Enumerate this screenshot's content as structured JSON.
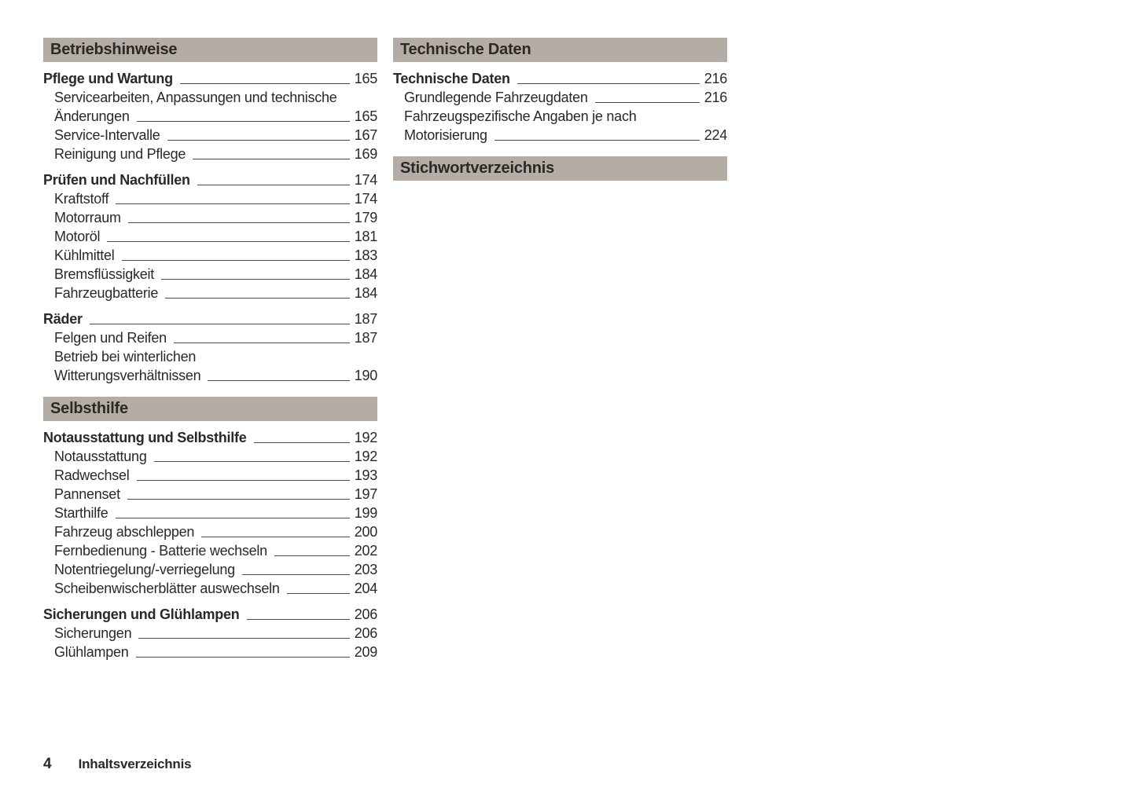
{
  "page": {
    "footer": {
      "page_number": "4",
      "label": "Inhaltsverzeichnis"
    }
  },
  "colors": {
    "page_background": "#ffffff",
    "section_bar_background": "#b3ada6",
    "text": "#2b2826",
    "leader_line": "#4b4b49"
  },
  "columns": [
    {
      "name": "left",
      "sections": [
        {
          "title": "Betriebshinweise",
          "groups": [
            {
              "title": "Pflege und Wartung",
              "page": "165",
              "items": [
                {
                  "lines": [
                    "Servicearbeiten, Anpassungen und technische",
                    "Änderungen"
                  ],
                  "page": "165"
                },
                {
                  "lines": [
                    "Service-Intervalle"
                  ],
                  "page": "167"
                },
                {
                  "lines": [
                    "Reinigung und Pflege"
                  ],
                  "page": "169"
                }
              ]
            },
            {
              "title": "Prüfen und Nachfüllen",
              "page": "174",
              "items": [
                {
                  "lines": [
                    "Kraftstoff"
                  ],
                  "page": "174"
                },
                {
                  "lines": [
                    "Motorraum"
                  ],
                  "page": "179"
                },
                {
                  "lines": [
                    "Motoröl"
                  ],
                  "page": "181"
                },
                {
                  "lines": [
                    "Kühlmittel"
                  ],
                  "page": "183"
                },
                {
                  "lines": [
                    "Bremsflüssigkeit"
                  ],
                  "page": "184"
                },
                {
                  "lines": [
                    "Fahrzeugbatterie"
                  ],
                  "page": "184"
                }
              ]
            },
            {
              "title": "Räder",
              "page": "187",
              "items": [
                {
                  "lines": [
                    "Felgen und Reifen"
                  ],
                  "page": "187"
                },
                {
                  "lines": [
                    "Betrieb bei winterlichen",
                    "Witterungsverhältnissen"
                  ],
                  "page": "190"
                }
              ]
            }
          ]
        },
        {
          "title": "Selbsthilfe",
          "groups": [
            {
              "title": "Notausstattung und Selbsthilfe",
              "page": "192",
              "items": [
                {
                  "lines": [
                    "Notausstattung"
                  ],
                  "page": "192"
                },
                {
                  "lines": [
                    "Radwechsel"
                  ],
                  "page": "193"
                },
                {
                  "lines": [
                    "Pannenset"
                  ],
                  "page": "197"
                },
                {
                  "lines": [
                    "Starthilfe"
                  ],
                  "page": "199"
                },
                {
                  "lines": [
                    "Fahrzeug abschleppen"
                  ],
                  "page": "200"
                },
                {
                  "lines": [
                    "Fernbedienung - Batterie wechseln"
                  ],
                  "page": "202"
                },
                {
                  "lines": [
                    "Notentriegelung/-verriegelung"
                  ],
                  "page": "203"
                },
                {
                  "lines": [
                    "Scheibenwischerblätter auswechseln"
                  ],
                  "page": "204"
                }
              ]
            },
            {
              "title": "Sicherungen und Glühlampen",
              "page": "206",
              "items": [
                {
                  "lines": [
                    "Sicherungen"
                  ],
                  "page": "206"
                },
                {
                  "lines": [
                    "Glühlampen"
                  ],
                  "page": "209"
                }
              ]
            }
          ]
        }
      ]
    },
    {
      "name": "right",
      "sections": [
        {
          "title": "Technische Daten",
          "groups": [
            {
              "title": "Technische Daten",
              "page": "216",
              "items": [
                {
                  "lines": [
                    "Grundlegende Fahrzeugdaten"
                  ],
                  "page": "216"
                },
                {
                  "lines": [
                    "Fahrzeugspezifische Angaben je nach",
                    "Motorisierung"
                  ],
                  "page": "224"
                }
              ]
            }
          ]
        },
        {
          "title": "Stichwortverzeichnis",
          "groups": []
        }
      ]
    }
  ]
}
